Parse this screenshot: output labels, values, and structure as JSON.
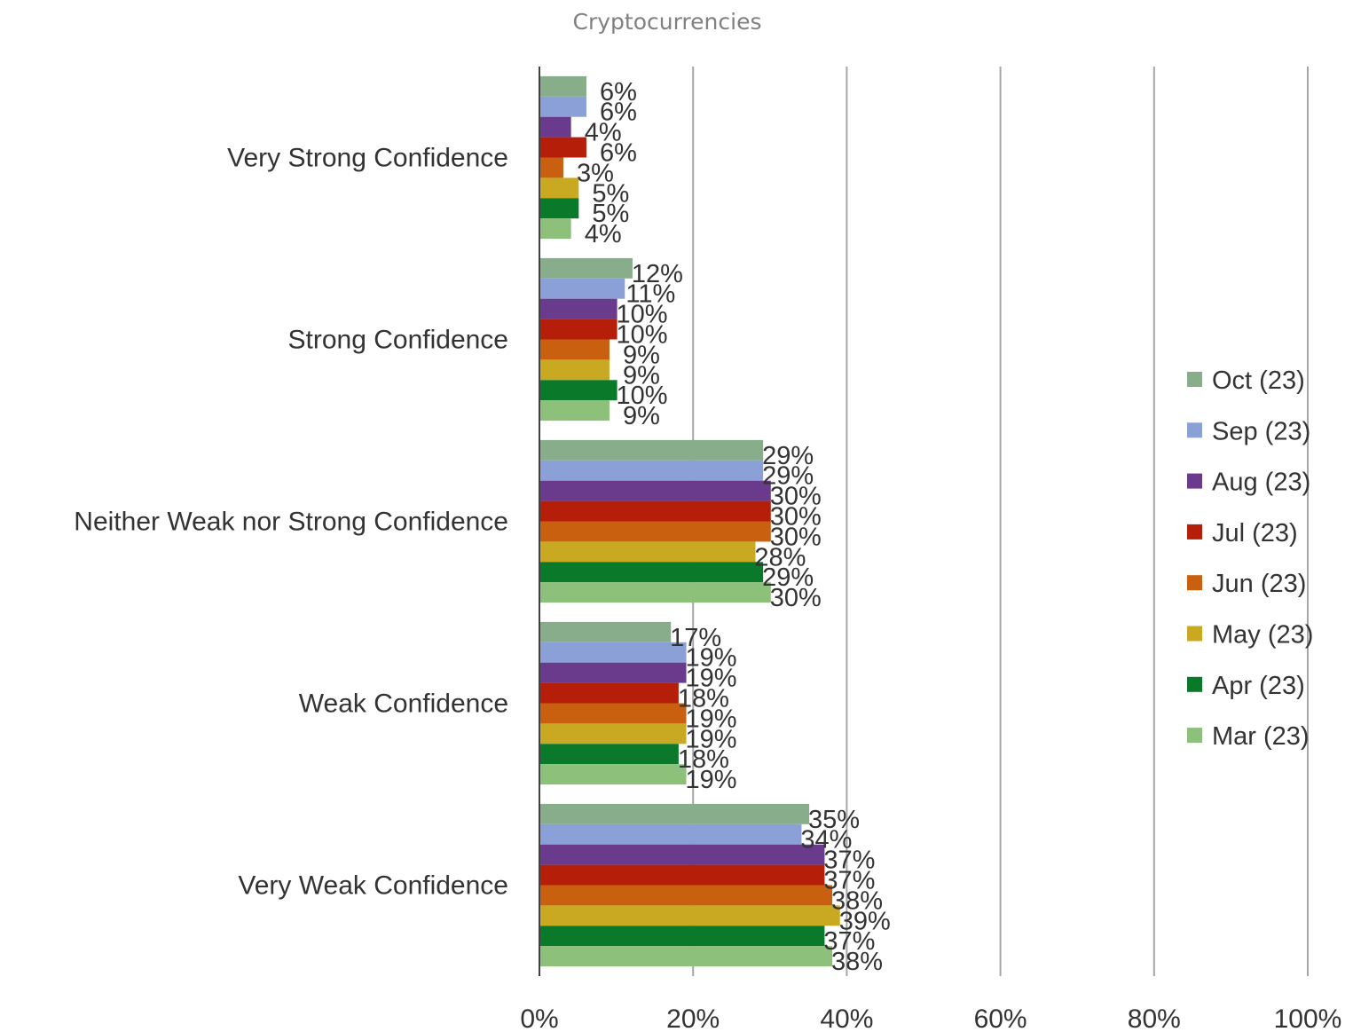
{
  "chart_data": {
    "type": "bar",
    "orientation": "horizontal",
    "title": "Cryptocurrencies",
    "categories": [
      "Very Strong Confidence",
      "Strong Confidence",
      "Neither Weak nor Strong Confidence",
      "Weak Confidence",
      "Very Weak Confidence"
    ],
    "series": [
      {
        "name": "Oct (23)",
        "color": "#87ad8a",
        "values": [
          6,
          12,
          29,
          17,
          35
        ],
        "labels": [
          "6%",
          "12%",
          "29%",
          "17%",
          "35%"
        ]
      },
      {
        "name": "Sep (23)",
        "color": "#8aa0d6",
        "values": [
          6,
          11,
          29,
          19,
          34
        ],
        "labels": [
          "6%",
          "11%",
          "29%",
          "19%",
          "34%"
        ]
      },
      {
        "name": "Aug (23)",
        "color": "#6a3a8c",
        "values": [
          4,
          10,
          30,
          19,
          37
        ],
        "labels": [
          "4%",
          "10%",
          "30%",
          "19%",
          "37%"
        ]
      },
      {
        "name": "Jul (23)",
        "color": "#b51f0a",
        "values": [
          6,
          10,
          30,
          18,
          37
        ],
        "labels": [
          "6%",
          "10%",
          "30%",
          "18%",
          "37%"
        ]
      },
      {
        "name": "Jun (23)",
        "color": "#c8600f",
        "values": [
          3,
          9,
          30,
          19,
          38
        ],
        "labels": [
          "3%",
          "9%",
          "30%",
          "19%",
          "38%"
        ]
      },
      {
        "name": "May (23)",
        "color": "#c9a922",
        "values": [
          5,
          9,
          28,
          19,
          39
        ],
        "labels": [
          "5%",
          "9%",
          "28%",
          "19%",
          "39%"
        ]
      },
      {
        "name": "Apr (23)",
        "color": "#0a7a2a",
        "values": [
          5,
          10,
          29,
          18,
          37
        ],
        "labels": [
          "5%",
          "10%",
          "29%",
          "18%",
          "37%"
        ]
      },
      {
        "name": "Mar (23)",
        "color": "#8dc07a",
        "values": [
          4,
          9,
          30,
          19,
          38
        ],
        "labels": [
          "4%",
          "9%",
          "30%",
          "19%",
          "38%"
        ]
      }
    ],
    "xlim": [
      0,
      100
    ],
    "x_ticks": [
      "0%",
      "20%",
      "40%",
      "60%",
      "80%",
      "100%"
    ],
    "x_tick_values": [
      0,
      20,
      40,
      60,
      80,
      100
    ],
    "grid": "vertical",
    "legend": "right"
  }
}
